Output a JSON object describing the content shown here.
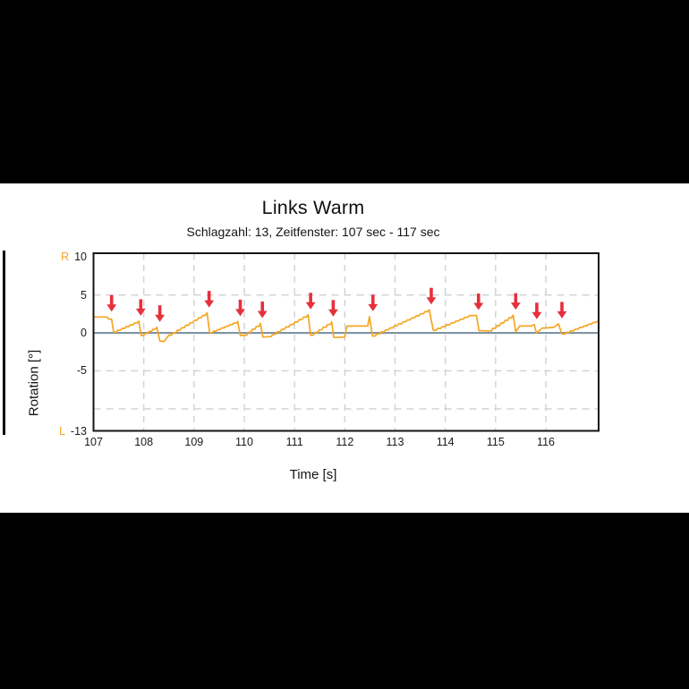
{
  "page": {
    "background": "#000000",
    "panel_background": "#ffffff"
  },
  "chart_data": {
    "type": "line",
    "title": "Links Warm",
    "subtitle": "Schlagzahl: 13, Zeitfenster: 107 sec - 117 sec",
    "xlabel": "Time [s]",
    "ylabel": "Rotation [°]",
    "xlim": [
      107,
      117.05
    ],
    "ylim": [
      -12.9,
      10.5
    ],
    "xticks": [
      107,
      108,
      109,
      110,
      111,
      112,
      113,
      114,
      115,
      116
    ],
    "yticks": [
      {
        "value": 10,
        "label": "10",
        "side": "R"
      },
      {
        "value": 5,
        "label": "5"
      },
      {
        "value": 0,
        "label": "0"
      },
      {
        "value": -5,
        "label": "-5"
      },
      {
        "value": -12.9,
        "label": "-13",
        "side": "L"
      }
    ],
    "side_label_color": "#f5a623",
    "v_gridlines": [
      108,
      109,
      110,
      111,
      112,
      113,
      114,
      115,
      116
    ],
    "h_gridlines": [
      5,
      -5,
      -10
    ],
    "grid_color": "#ccd2d7",
    "grid_on": true,
    "zero_line": {
      "value": 0,
      "color": "#7e94a2"
    },
    "border_color": "#151515",
    "legend": "none",
    "series": [
      {
        "name": "rotation",
        "color": "#f5a623",
        "segments": [
          [
            "start",
            107.0,
            2.1
          ],
          [
            "flat",
            107.27,
            2.1
          ],
          [
            "line",
            107.3,
            1.82
          ],
          [
            "flat",
            107.36,
            1.82
          ],
          [
            "drop",
            107.4,
            0.12
          ],
          [
            "stair",
            107.9,
            1.55
          ],
          [
            "drop",
            107.95,
            -0.35
          ],
          [
            "stair",
            108.26,
            0.75
          ],
          [
            "drop",
            108.32,
            -1.05
          ],
          [
            "line",
            108.4,
            -1.15
          ],
          [
            "line",
            108.5,
            -0.3
          ],
          [
            "stair",
            109.26,
            2.65
          ],
          [
            "drop",
            109.31,
            0.02
          ],
          [
            "stair",
            109.87,
            1.5
          ],
          [
            "drop",
            109.92,
            -0.35
          ],
          [
            "flat",
            110.0,
            -0.3
          ],
          [
            "stair",
            110.32,
            1.25
          ],
          [
            "drop",
            110.37,
            -0.55
          ],
          [
            "flat",
            110.48,
            -0.5
          ],
          [
            "stair",
            111.27,
            2.4
          ],
          [
            "drop",
            111.32,
            -0.3
          ],
          [
            "stair",
            111.74,
            1.45
          ],
          [
            "drop",
            111.78,
            -0.6
          ],
          [
            "flat",
            112.0,
            -0.55
          ],
          [
            "line",
            112.04,
            0.9
          ],
          [
            "flat",
            112.4,
            0.9
          ],
          [
            "stair",
            112.49,
            2.15
          ],
          [
            "drop",
            112.55,
            -0.4
          ],
          [
            "stair",
            113.68,
            3.05
          ],
          [
            "drop",
            113.76,
            0.35
          ],
          [
            "stair",
            114.48,
            2.3
          ],
          [
            "flat",
            114.62,
            2.3
          ],
          [
            "drop",
            114.67,
            0.3
          ],
          [
            "flat",
            114.87,
            0.27
          ],
          [
            "stair",
            115.35,
            2.35
          ],
          [
            "drop",
            115.4,
            0.15
          ],
          [
            "line",
            115.48,
            0.9
          ],
          [
            "flat",
            115.7,
            0.9
          ],
          [
            "line",
            115.77,
            1.1
          ],
          [
            "drop",
            115.81,
            0.0
          ],
          [
            "line",
            115.93,
            0.65
          ],
          [
            "stair",
            116.16,
            0.75
          ],
          [
            "line",
            116.25,
            1.2
          ],
          [
            "drop",
            116.32,
            -0.15
          ],
          [
            "stair",
            117.03,
            1.6
          ]
        ]
      }
    ],
    "arrows": {
      "color": "#e5303d",
      "meaning": "stroke markers above each peak",
      "points": [
        [
          107.36,
          2.1
        ],
        [
          107.94,
          1.55
        ],
        [
          108.32,
          0.75
        ],
        [
          109.3,
          2.65
        ],
        [
          109.92,
          1.5
        ],
        [
          110.36,
          1.25
        ],
        [
          111.32,
          2.4
        ],
        [
          111.77,
          1.45
        ],
        [
          112.56,
          2.15
        ],
        [
          113.72,
          3.05
        ],
        [
          114.66,
          2.3
        ],
        [
          115.4,
          2.35
        ],
        [
          115.82,
          1.1
        ],
        [
          116.32,
          1.2
        ]
      ]
    }
  }
}
